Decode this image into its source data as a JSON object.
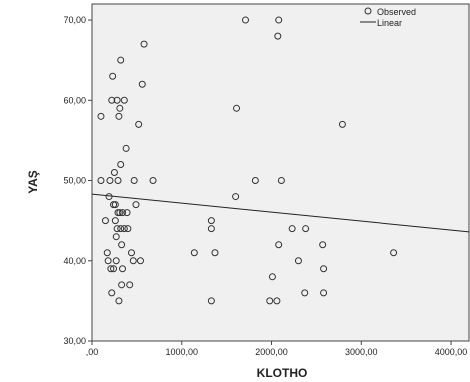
{
  "chart_data": {
    "type": "scatter",
    "xlabel": "KLOTHO",
    "ylabel": "YAŞ",
    "xlim": [
      0,
      4200
    ],
    "ylim": [
      30,
      72
    ],
    "x_ticks": [
      0,
      1000,
      2000,
      3000,
      4000
    ],
    "x_tick_labels": [
      ",00",
      "1000,00",
      "2000,00",
      "3000,00",
      "4000,00"
    ],
    "y_ticks": [
      30,
      40,
      50,
      60,
      70
    ],
    "y_tick_labels": [
      "30,00",
      "40,00",
      "50,00",
      "60,00",
      "70,00"
    ],
    "grid": false,
    "legend": {
      "placement": "top-right",
      "entries": [
        {
          "label": "Observed",
          "marker": "open-circle"
        },
        {
          "label": "Linear",
          "marker": "line"
        }
      ]
    },
    "series": [
      {
        "name": "Observed",
        "points": [
          [
            100,
            58
          ],
          [
            100,
            50
          ],
          [
            150,
            45
          ],
          [
            170,
            41
          ],
          [
            180,
            40
          ],
          [
            190,
            48
          ],
          [
            200,
            50
          ],
          [
            210,
            39
          ],
          [
            220,
            60
          ],
          [
            220,
            36
          ],
          [
            230,
            63
          ],
          [
            240,
            39
          ],
          [
            240,
            47
          ],
          [
            250,
            51
          ],
          [
            260,
            47
          ],
          [
            260,
            45
          ],
          [
            270,
            43
          ],
          [
            270,
            40
          ],
          [
            280,
            44
          ],
          [
            280,
            60
          ],
          [
            290,
            50
          ],
          [
            290,
            46
          ],
          [
            300,
            58
          ],
          [
            300,
            35
          ],
          [
            310,
            46
          ],
          [
            310,
            59
          ],
          [
            320,
            52
          ],
          [
            320,
            44
          ],
          [
            320,
            65
          ],
          [
            330,
            42
          ],
          [
            330,
            37
          ],
          [
            340,
            46
          ],
          [
            340,
            39
          ],
          [
            360,
            44
          ],
          [
            360,
            60
          ],
          [
            380,
            54
          ],
          [
            390,
            46
          ],
          [
            400,
            44
          ],
          [
            420,
            37
          ],
          [
            440,
            41
          ],
          [
            460,
            40
          ],
          [
            470,
            50
          ],
          [
            490,
            47
          ],
          [
            520,
            57
          ],
          [
            540,
            40
          ],
          [
            560,
            62
          ],
          [
            580,
            67
          ],
          [
            680,
            50
          ],
          [
            1140,
            41
          ],
          [
            1330,
            45
          ],
          [
            1330,
            44
          ],
          [
            1330,
            35
          ],
          [
            1370,
            41
          ],
          [
            1600,
            48
          ],
          [
            1610,
            59
          ],
          [
            1710,
            70
          ],
          [
            1820,
            50
          ],
          [
            1980,
            35
          ],
          [
            2010,
            38
          ],
          [
            2060,
            35
          ],
          [
            2070,
            68
          ],
          [
            2080,
            70
          ],
          [
            2080,
            42
          ],
          [
            2110,
            50
          ],
          [
            2230,
            44
          ],
          [
            2300,
            40
          ],
          [
            2370,
            36
          ],
          [
            2380,
            44
          ],
          [
            2570,
            42
          ],
          [
            2580,
            39
          ],
          [
            2580,
            36
          ],
          [
            2790,
            57
          ],
          [
            3360,
            41
          ]
        ]
      },
      {
        "name": "Linear",
        "type": "line",
        "endpoints": [
          [
            0,
            48.3
          ],
          [
            4200,
            43.6
          ]
        ]
      }
    ]
  }
}
